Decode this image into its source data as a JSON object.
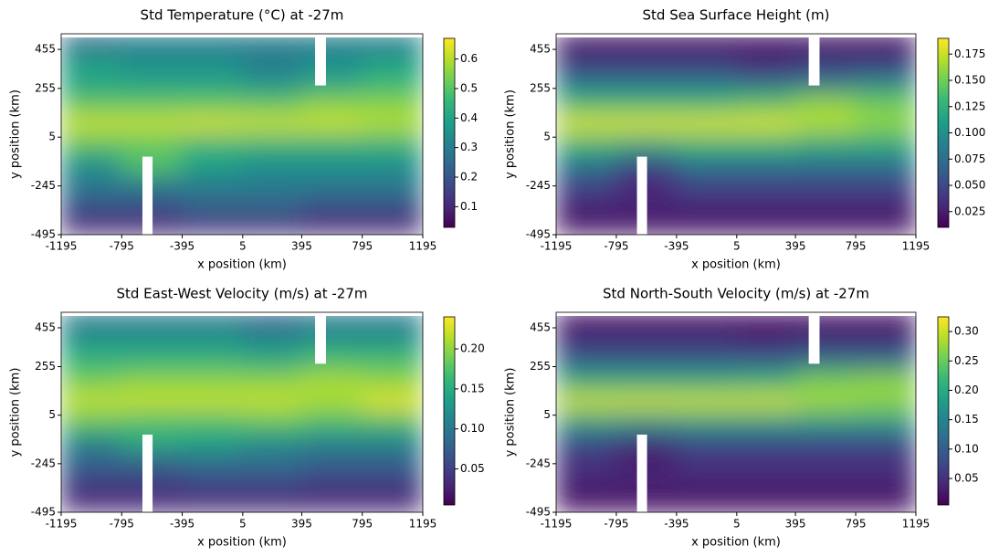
{
  "chart_data": [
    {
      "type": "heatmap",
      "title": "Std Temperature (°C) at -27m",
      "x_label": "x position (km)",
      "y_label": "y position (km)",
      "colormap": "viridis",
      "x": [
        -996,
        -598,
        -199,
        199,
        598,
        996
      ],
      "y": [
        484,
        381,
        278,
        175,
        72,
        -31,
        -134,
        -237,
        -340,
        -443
      ],
      "z": [
        [
          0.25,
          0.3,
          0.3,
          0.3,
          0.3,
          0.3
        ],
        [
          0.4,
          0.35,
          0.35,
          0.3,
          0.35,
          0.4
        ],
        [
          0.4,
          0.4,
          0.4,
          0.35,
          0.4,
          0.45
        ],
        [
          0.5,
          0.5,
          0.5,
          0.5,
          0.55,
          0.55
        ],
        [
          0.62,
          0.62,
          0.63,
          0.62,
          0.62,
          0.6
        ],
        [
          0.5,
          0.5,
          0.45,
          0.45,
          0.45,
          0.45
        ],
        [
          0.35,
          0.5,
          0.4,
          0.35,
          0.35,
          0.35
        ],
        [
          0.3,
          0.3,
          0.3,
          0.3,
          0.3,
          0.3
        ],
        [
          0.2,
          0.2,
          0.25,
          0.25,
          0.2,
          0.2
        ],
        [
          0.1,
          0.1,
          0.12,
          0.12,
          0.1,
          0.1
        ]
      ],
      "xlim": [
        -1195,
        1195
      ],
      "xticks": [
        -1195,
        -795,
        -395,
        5,
        395,
        795,
        1195
      ],
      "ylim": [
        -495,
        535
      ],
      "yticks": [
        -495,
        -245,
        5,
        255,
        455
      ],
      "clim": [
        0.03,
        0.67
      ],
      "cticks": [
        0.1,
        0.2,
        0.3,
        0.4,
        0.5,
        0.6
      ]
    },
    {
      "type": "heatmap",
      "title": "Std Sea Surface Height (m)",
      "x_label": "x position (km)",
      "y_label": "y position (km)",
      "colormap": "viridis",
      "x": [
        -996,
        -598,
        -199,
        199,
        598,
        996
      ],
      "y": [
        484,
        381,
        278,
        175,
        72,
        -31,
        -134,
        -237,
        -340,
        -443
      ],
      "z": [
        [
          0.02,
          0.02,
          0.02,
          0.02,
          0.02,
          0.02
        ],
        [
          0.04,
          0.04,
          0.04,
          0.03,
          0.04,
          0.04
        ],
        [
          0.08,
          0.08,
          0.08,
          0.07,
          0.08,
          0.09
        ],
        [
          0.13,
          0.13,
          0.13,
          0.14,
          0.16,
          0.15
        ],
        [
          0.18,
          0.18,
          0.18,
          0.18,
          0.17,
          0.16
        ],
        [
          0.13,
          0.12,
          0.13,
          0.13,
          0.12,
          0.12
        ],
        [
          0.08,
          0.05,
          0.08,
          0.08,
          0.08,
          0.08
        ],
        [
          0.05,
          0.03,
          0.05,
          0.05,
          0.05,
          0.05
        ],
        [
          0.03,
          0.03,
          0.03,
          0.03,
          0.03,
          0.03
        ],
        [
          0.02,
          0.02,
          0.02,
          0.02,
          0.02,
          0.02
        ]
      ],
      "xlim": [
        -1195,
        1195
      ],
      "xticks": [
        -1195,
        -795,
        -395,
        5,
        395,
        795,
        1195
      ],
      "ylim": [
        -495,
        535
      ],
      "yticks": [
        -495,
        -245,
        5,
        255,
        455
      ],
      "clim": [
        0.01,
        0.19
      ],
      "cticks": [
        0.025,
        {
          "value": 0.05,
          "label": "0.050"
        },
        0.075,
        {
          "value": 0.1,
          "label": "0.100"
        },
        0.125,
        {
          "value": 0.15,
          "label": "0.150"
        },
        0.175
      ]
    },
    {
      "type": "heatmap",
      "title": "Std East-West Velocity (m/s) at -27m",
      "x_label": "x position (km)",
      "y_label": "y position (km)",
      "colormap": "viridis",
      "x": [
        -996,
        -598,
        -199,
        199,
        598,
        996
      ],
      "y": [
        484,
        381,
        278,
        175,
        72,
        -31,
        -134,
        -237,
        -340,
        -443
      ],
      "z": [
        [
          0.1,
          0.1,
          0.1,
          0.08,
          0.1,
          0.1
        ],
        [
          0.13,
          0.13,
          0.13,
          0.12,
          0.13,
          0.13
        ],
        [
          0.16,
          0.16,
          0.16,
          0.15,
          0.17,
          0.17
        ],
        [
          0.19,
          0.2,
          0.2,
          0.2,
          0.21,
          0.2
        ],
        [
          0.22,
          0.22,
          0.22,
          0.22,
          0.21,
          0.23
        ],
        [
          0.18,
          0.17,
          0.17,
          0.18,
          0.17,
          0.17
        ],
        [
          0.11,
          0.15,
          0.14,
          0.12,
          0.11,
          0.11
        ],
        [
          0.08,
          0.08,
          0.09,
          0.09,
          0.08,
          0.08
        ],
        [
          0.05,
          0.05,
          0.06,
          0.06,
          0.05,
          0.05
        ],
        [
          0.03,
          0.03,
          0.03,
          0.03,
          0.03,
          0.03
        ]
      ],
      "xlim": [
        -1195,
        1195
      ],
      "xticks": [
        -1195,
        -795,
        -395,
        5,
        395,
        795,
        1195
      ],
      "ylim": [
        -495,
        535
      ],
      "yticks": [
        -495,
        -245,
        5,
        255,
        455
      ],
      "clim": [
        0.005,
        0.24
      ],
      "cticks": [
        0.05,
        {
          "value": 0.1,
          "label": "0.10"
        },
        0.15,
        {
          "value": 0.2,
          "label": "0.20"
        }
      ]
    },
    {
      "type": "heatmap",
      "title": "Std North-South Velocity (m/s) at -27m",
      "x_label": "x position (km)",
      "y_label": "y position (km)",
      "colormap": "viridis",
      "x": [
        -996,
        -598,
        -199,
        199,
        598,
        996
      ],
      "y": [
        484,
        381,
        278,
        175,
        72,
        -31,
        -134,
        -237,
        -340,
        -443
      ],
      "z": [
        [
          0.02,
          0.02,
          0.02,
          0.02,
          0.02,
          0.02
        ],
        [
          0.05,
          0.05,
          0.05,
          0.04,
          0.05,
          0.05
        ],
        [
          0.1,
          0.1,
          0.1,
          0.1,
          0.12,
          0.12
        ],
        [
          0.2,
          0.2,
          0.2,
          0.21,
          0.26,
          0.27
        ],
        [
          0.3,
          0.3,
          0.3,
          0.3,
          0.28,
          0.27
        ],
        [
          0.18,
          0.17,
          0.18,
          0.18,
          0.18,
          0.18
        ],
        [
          0.08,
          0.05,
          0.08,
          0.08,
          0.08,
          0.08
        ],
        [
          0.05,
          0.03,
          0.05,
          0.05,
          0.05,
          0.05
        ],
        [
          0.04,
          0.04,
          0.04,
          0.04,
          0.04,
          0.04
        ],
        [
          0.02,
          0.02,
          0.02,
          0.02,
          0.02,
          0.02
        ]
      ],
      "xlim": [
        -1195,
        1195
      ],
      "xticks": [
        -1195,
        -795,
        -395,
        5,
        395,
        795,
        1195
      ],
      "ylim": [
        -495,
        535
      ],
      "yticks": [
        -495,
        -245,
        5,
        255,
        455
      ],
      "clim": [
        0.005,
        0.325
      ],
      "cticks": [
        0.05,
        {
          "value": 0.1,
          "label": "0.10"
        },
        0.15,
        {
          "value": 0.2,
          "label": "0.20"
        },
        0.25,
        {
          "value": 0.3,
          "label": "0.30"
        }
      ]
    }
  ]
}
